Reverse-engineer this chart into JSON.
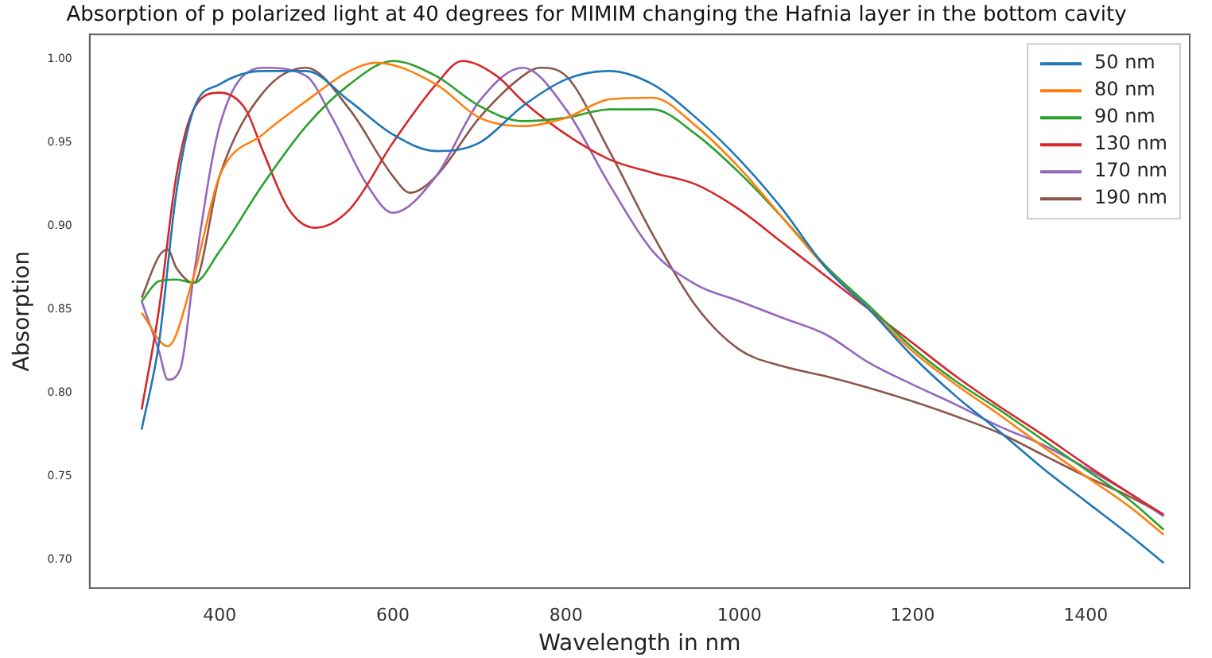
{
  "chart_data": {
    "type": "line",
    "title": "Absorption of p polarized light at 40 degrees for MIMIM changing the Hafnia layer in the bottom cavity",
    "xlabel": "Wavelength in nm",
    "ylabel": "Absorption",
    "xlim": [
      250,
      1520
    ],
    "xticks": [
      400,
      600,
      800,
      1000,
      1200,
      1400
    ],
    "ylim": [
      0.683,
      1.015
    ],
    "yticks": [
      {
        "value": 0.7,
        "label": "0.70"
      },
      {
        "value": 0.75,
        "label": "0.75"
      },
      {
        "value": 0.8,
        "label": "0.80"
      },
      {
        "value": 0.85,
        "label": "0.85"
      },
      {
        "value": 0.9,
        "label": "0.90"
      },
      {
        "value": 0.95,
        "label": "0.95"
      },
      {
        "value": 1.0,
        "label": "1.00"
      }
    ],
    "grid": false,
    "legend": "top right",
    "marker": "none",
    "line_style": "solid",
    "series": [
      {
        "name": "50 nm",
        "color": "#1f77b4",
        "x": [
          310,
          330,
          350,
          370,
          400,
          450,
          500,
          550,
          600,
          650,
          700,
          750,
          800,
          850,
          900,
          950,
          1000,
          1050,
          1100,
          1150,
          1200,
          1250,
          1300,
          1350,
          1400,
          1450,
          1490
        ],
        "values": [
          0.778,
          0.83,
          0.92,
          0.97,
          0.985,
          0.993,
          0.993,
          0.975,
          0.955,
          0.945,
          0.95,
          0.972,
          0.988,
          0.993,
          0.985,
          0.965,
          0.94,
          0.91,
          0.875,
          0.85,
          0.822,
          0.798,
          0.777,
          0.755,
          0.735,
          0.715,
          0.698
        ]
      },
      {
        "name": "80 nm",
        "color": "#ff7f0e",
        "x": [
          310,
          340,
          370,
          400,
          450,
          500,
          550,
          580,
          650,
          700,
          750,
          800,
          850,
          900,
          950,
          1000,
          1050,
          1100,
          1150,
          1200,
          1250,
          1300,
          1350,
          1400,
          1450,
          1490
        ],
        "values": [
          0.848,
          0.828,
          0.87,
          0.93,
          0.955,
          0.975,
          0.993,
          0.998,
          0.985,
          0.965,
          0.96,
          0.965,
          0.976,
          0.977,
          0.96,
          0.935,
          0.905,
          0.875,
          0.85,
          0.825,
          0.805,
          0.787,
          0.768,
          0.75,
          0.732,
          0.715
        ]
      },
      {
        "name": "90 nm",
        "color": "#2ca02c",
        "x": [
          310,
          330,
          350,
          370,
          400,
          450,
          500,
          550,
          600,
          650,
          700,
          750,
          800,
          850,
          900,
          950,
          1000,
          1050,
          1100,
          1150,
          1200,
          1250,
          1300,
          1350,
          1400,
          1450,
          1490
        ],
        "values": [
          0.855,
          0.867,
          0.868,
          0.866,
          0.885,
          0.925,
          0.96,
          0.985,
          0.999,
          0.99,
          0.972,
          0.963,
          0.965,
          0.97,
          0.97,
          0.955,
          0.932,
          0.905,
          0.876,
          0.852,
          0.827,
          0.807,
          0.79,
          0.772,
          0.754,
          0.736,
          0.718
        ]
      },
      {
        "name": "130 nm",
        "color": "#d62728",
        "x": [
          310,
          330,
          350,
          370,
          400,
          430,
          450,
          480,
          510,
          550,
          600,
          650,
          680,
          720,
          750,
          800,
          850,
          900,
          950,
          1000,
          1050,
          1100,
          1150,
          1200,
          1250,
          1300,
          1350,
          1400,
          1450,
          1490
        ],
        "values": [
          0.79,
          0.85,
          0.93,
          0.97,
          0.98,
          0.97,
          0.945,
          0.91,
          0.899,
          0.91,
          0.95,
          0.985,
          0.999,
          0.99,
          0.975,
          0.955,
          0.94,
          0.932,
          0.925,
          0.91,
          0.89,
          0.87,
          0.85,
          0.83,
          0.81,
          0.792,
          0.775,
          0.757,
          0.74,
          0.727
        ]
      },
      {
        "name": "170 nm",
        "color": "#9467bd",
        "x": [
          310,
          330,
          340,
          355,
          370,
          400,
          450,
          500,
          530,
          570,
          600,
          650,
          700,
          750,
          800,
          850,
          900,
          950,
          1000,
          1050,
          1100,
          1150,
          1200,
          1250,
          1300,
          1350,
          1400,
          1450,
          1490
        ],
        "values": [
          0.855,
          0.825,
          0.808,
          0.815,
          0.87,
          0.96,
          0.995,
          0.99,
          0.965,
          0.925,
          0.908,
          0.93,
          0.975,
          0.995,
          0.97,
          0.925,
          0.885,
          0.865,
          0.855,
          0.845,
          0.835,
          0.818,
          0.805,
          0.793,
          0.78,
          0.769,
          0.755,
          0.74,
          0.726
        ]
      },
      {
        "name": "190 nm",
        "color": "#8c564b",
        "x": [
          310,
          330,
          340,
          350,
          370,
          400,
          450,
          500,
          550,
          600,
          620,
          650,
          700,
          750,
          770,
          800,
          850,
          900,
          950,
          1000,
          1050,
          1100,
          1150,
          1200,
          1250,
          1300,
          1350,
          1400,
          1450,
          1490
        ],
        "values": [
          0.857,
          0.882,
          0.886,
          0.875,
          0.866,
          0.93,
          0.98,
          0.995,
          0.97,
          0.93,
          0.92,
          0.93,
          0.965,
          0.99,
          0.995,
          0.99,
          0.945,
          0.895,
          0.852,
          0.826,
          0.816,
          0.81,
          0.803,
          0.795,
          0.786,
          0.776,
          0.763,
          0.75,
          0.738,
          0.727
        ]
      }
    ]
  }
}
